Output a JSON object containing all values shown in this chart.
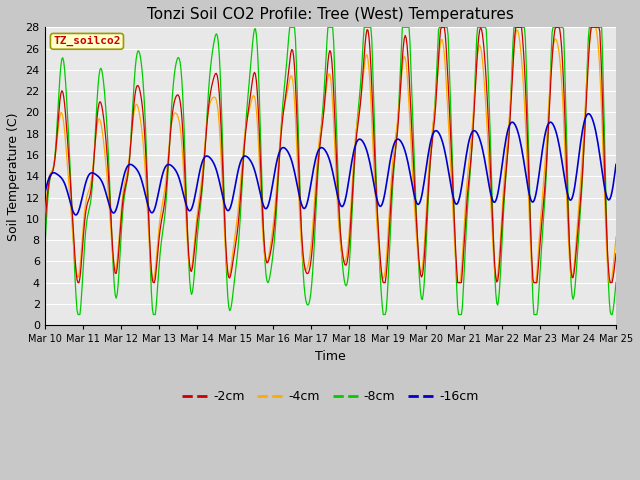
{
  "title": "Tonzi Soil CO2 Profile: Tree (West) Temperatures",
  "xlabel": "Time",
  "ylabel": "Soil Temperature (C)",
  "ylim": [
    0,
    28
  ],
  "yticks": [
    0,
    2,
    4,
    6,
    8,
    10,
    12,
    14,
    16,
    18,
    20,
    22,
    24,
    26,
    28
  ],
  "x_labels": [
    "Mar 10",
    "Mar 11",
    "Mar 12",
    "Mar 13",
    "Mar 14",
    "Mar 15",
    "Mar 16",
    "Mar 17",
    "Mar 18",
    "Mar 19",
    "Mar 20",
    "Mar 21",
    "Mar 22",
    "Mar 23",
    "Mar 24",
    "Mar 25"
  ],
  "series_labels": [
    "-2cm",
    "-4cm",
    "-8cm",
    "-16cm"
  ],
  "series_colors": [
    "#cc0000",
    "#ffaa00",
    "#00cc00",
    "#0000cc"
  ],
  "legend_label": "TZ_soilco2",
  "fig_facecolor": "#c8c8c8",
  "ax_facecolor": "#e8e8e8",
  "grid_color": "#ffffff",
  "title_fontsize": 11,
  "axis_fontsize": 9,
  "tick_fontsize": 8,
  "n_points": 600
}
